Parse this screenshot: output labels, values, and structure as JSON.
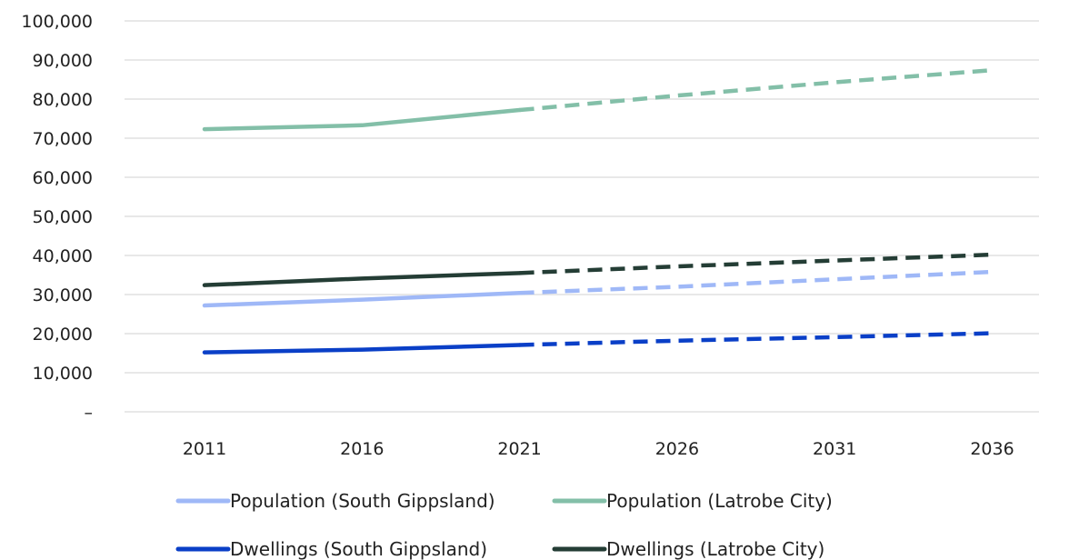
{
  "chart_data": {
    "type": "line",
    "title": "",
    "xlabel": "",
    "ylabel": "",
    "categories": [
      "2011",
      "2016",
      "2021",
      "2026",
      "2031",
      "2036"
    ],
    "projection_from": "2021",
    "ylim": [
      0,
      100000
    ],
    "yticks": [
      {
        "value": 0,
        "label": "–"
      },
      {
        "value": 10000,
        "label": "10,000"
      },
      {
        "value": 20000,
        "label": "20,000"
      },
      {
        "value": 30000,
        "label": "30,000"
      },
      {
        "value": 40000,
        "label": "40,000"
      },
      {
        "value": 50000,
        "label": "50,000"
      },
      {
        "value": 60000,
        "label": "60,000"
      },
      {
        "value": 70000,
        "label": "70,000"
      },
      {
        "value": 80000,
        "label": "80,000"
      },
      {
        "value": 90000,
        "label": "90,000"
      },
      {
        "value": 100000,
        "label": "100,000"
      }
    ],
    "grid": true,
    "legend_position": "bottom",
    "series": [
      {
        "name": "Population (South Gippsland)",
        "color": "#9fb8f7",
        "values": [
          27200,
          28700,
          30400,
          32000,
          33900,
          35800
        ]
      },
      {
        "name": "Population (Latrobe City)",
        "color": "#83bfa8",
        "values": [
          72300,
          73300,
          77200,
          80900,
          84300,
          87400
        ]
      },
      {
        "name": "Dwellings (South Gippsland)",
        "color": "#0a3fc7",
        "values": [
          15200,
          15900,
          17100,
          18200,
          19100,
          20100
        ]
      },
      {
        "name": "Dwellings (Latrobe City)",
        "color": "#243d35",
        "values": [
          32400,
          34100,
          35500,
          37200,
          38700,
          40200
        ]
      }
    ]
  }
}
